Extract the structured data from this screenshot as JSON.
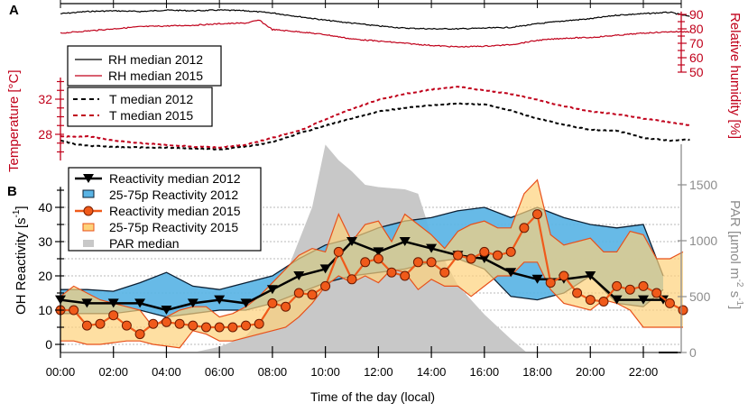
{
  "chart_data": [
    {
      "panel_label": "A",
      "type": "line",
      "x_unit": "hour",
      "xlim": [
        0,
        24
      ],
      "left_axis": {
        "label": "Temperature [°C]",
        "ticks": [
          28,
          32
        ],
        "range": [
          25.1,
          34.5
        ],
        "color": "#c0001a"
      },
      "right_axis": {
        "label": "Relative humidity [%]",
        "ticks": [
          50,
          60,
          70,
          80,
          90
        ],
        "range": [
          50,
          90
        ],
        "color": "#c0001a"
      },
      "legend_rh": [
        {
          "label": "RH median 2012",
          "color": "#000000",
          "dash": "solid"
        },
        {
          "label": "RH median 2015",
          "color": "#c0001a",
          "dash": "solid"
        }
      ],
      "legend_t": [
        {
          "label": "T median 2012",
          "color": "#000000",
          "dash": "dashed"
        },
        {
          "label": "T median 2015",
          "color": "#c0001a",
          "dash": "dashed"
        }
      ],
      "series": [
        {
          "name": "RH median 2012",
          "axis": "right",
          "color": "#000000",
          "dash": false,
          "x": [
            0,
            1,
            2,
            3,
            4,
            5,
            6,
            7,
            8,
            9,
            10,
            11,
            12,
            13,
            14,
            15,
            16,
            17,
            18,
            19,
            20,
            21,
            22,
            23,
            23.75
          ],
          "values": [
            90.5,
            92,
            92.5,
            92,
            93,
            92.5,
            93,
            92.5,
            91,
            88.5,
            86,
            84,
            82,
            80.5,
            80,
            80,
            80.5,
            81,
            83.5,
            85.5,
            87,
            89.5,
            90.5,
            91.5,
            88.5
          ]
        },
        {
          "name": "RH median 2015",
          "axis": "right",
          "color": "#c0001a",
          "dash": false,
          "x": [
            0,
            1,
            2,
            3,
            4,
            5,
            6,
            7,
            7.5,
            8,
            9,
            10,
            11,
            12,
            13,
            14,
            15,
            16,
            17,
            18,
            19,
            20,
            21,
            22,
            23,
            23.75
          ],
          "values": [
            77,
            78.5,
            80,
            81.5,
            82,
            82.5,
            83.5,
            84,
            86,
            79.5,
            78,
            76,
            73,
            71.5,
            70,
            68.5,
            67.5,
            68,
            69,
            72,
            73.5,
            74,
            75.5,
            77,
            78,
            78
          ]
        },
        {
          "name": "T median 2012",
          "axis": "left",
          "color": "#000000",
          "dash": true,
          "x": [
            0,
            0.5,
            1,
            2,
            3,
            4,
            5,
            6,
            7,
            8,
            9,
            10,
            11,
            12,
            13,
            14,
            15,
            16,
            17,
            18,
            19,
            20,
            21,
            22,
            23,
            23.75
          ],
          "values": [
            27.3,
            26.9,
            26.7,
            26.6,
            26.5,
            26.5,
            26.4,
            26.3,
            26.6,
            27.1,
            28.1,
            29.0,
            29.8,
            30.6,
            31.0,
            31.3,
            31.5,
            31.4,
            30.7,
            29.8,
            29.1,
            28.5,
            28.4,
            27.6,
            27.3,
            27.4
          ]
        },
        {
          "name": "T median 2015",
          "axis": "left",
          "color": "#c0001a",
          "dash": true,
          "x": [
            0,
            0.5,
            1,
            2,
            3,
            4,
            5,
            6,
            7,
            8,
            9,
            10,
            11,
            12,
            13,
            14,
            15,
            16,
            17,
            18,
            19,
            20,
            21,
            22,
            23,
            23.75
          ],
          "values": [
            27.8,
            27.7,
            27.8,
            27.3,
            27.0,
            26.8,
            26.6,
            26.5,
            26.8,
            27.6,
            28.4,
            29.7,
            30.9,
            31.9,
            32.6,
            33.1,
            33.4,
            33.0,
            32.6,
            31.9,
            31.2,
            30.6,
            30.3,
            29.8,
            29.4,
            29.0
          ]
        }
      ]
    },
    {
      "panel_label": "B",
      "type": "line",
      "xlabel": "Time of the day (local)",
      "x_ticks": [
        "00:00",
        "02:00",
        "04:00",
        "06:00",
        "08:00",
        "10:00",
        "12:00",
        "14:00",
        "16:00",
        "18:00",
        "20:00",
        "22:00"
      ],
      "xlim": [
        0,
        24
      ],
      "left_axis": {
        "label": "OH Reactivity [s⁻¹]",
        "label_main": "OH Reactivity [s",
        "label_sup": "-1",
        "label_end": "]",
        "ticks": [
          0,
          10,
          20,
          30,
          40
        ],
        "range": [
          -2,
          48
        ]
      },
      "right_axis": {
        "label": "PAR [µmol m⁻² s⁻¹]",
        "label_main": "PAR [µmol m",
        "label_sup1": "-2",
        "label_mid": " s",
        "label_sup2": "-1",
        "label_end": "]",
        "ticks": [
          0,
          500,
          1000,
          1500
        ],
        "range": [
          0,
          1510
        ],
        "color": "#8c8c8c"
      },
      "grid": "horizontal-dotted",
      "legend_position": "top-left",
      "legend": [
        {
          "label": "Reactivity median 2012",
          "kind": "line-triangle",
          "color": "#000000"
        },
        {
          "label": "25-75p Reactivity 2012",
          "kind": "band",
          "color": "#5ab4e5"
        },
        {
          "label": "Reactivity median 2015",
          "kind": "line-circle",
          "color": "#f05a1a"
        },
        {
          "label": "25-75p Reactivity 2015",
          "kind": "band",
          "color": "#fdd27a"
        },
        {
          "label": "PAR median",
          "kind": "area",
          "color": "#c8c8c8"
        }
      ],
      "series": [
        {
          "name": "PAR median",
          "axis": "right",
          "type": "area",
          "color": "#c8c8c8",
          "x": [
            5,
            6,
            7,
            8,
            8.5,
            9,
            9.5,
            10,
            10.5,
            11,
            11.5,
            12,
            12.5,
            13,
            13.5,
            14,
            15,
            16,
            17,
            17.6
          ],
          "values": [
            0,
            50,
            150,
            400,
            700,
            1000,
            1300,
            1860,
            1720,
            1620,
            1500,
            1480,
            1470,
            1460,
            1420,
            1050,
            600,
            340,
            120,
            0
          ]
        },
        {
          "name": "25-75p Reactivity 2012",
          "type": "band",
          "color": "#5ab4e5",
          "edge": "#0b1f33",
          "x": [
            0,
            1,
            2,
            3,
            4,
            5,
            6,
            7,
            8,
            9,
            10,
            11,
            12,
            13,
            14,
            15,
            16,
            17,
            18,
            19,
            20,
            21,
            22,
            22.75
          ],
          "upper": [
            16,
            16,
            15.5,
            18,
            21,
            17,
            16,
            18,
            20,
            25,
            29,
            31,
            34,
            36,
            37,
            39,
            40,
            37,
            40,
            37,
            35,
            34,
            35,
            20
          ],
          "lower": [
            9,
            9,
            9,
            10,
            8,
            9,
            10,
            10,
            12,
            15,
            18,
            20,
            21,
            22,
            24,
            25,
            22,
            14,
            13,
            15,
            20,
            12,
            11,
            16
          ]
        },
        {
          "name": "25-75p Reactivity 2015",
          "type": "band",
          "color": "#fdd27a",
          "edge": "#e8501a",
          "x": [
            0,
            0.5,
            1,
            1.5,
            2,
            2.5,
            3,
            3.5,
            4,
            4.5,
            5,
            5.5,
            6,
            6.5,
            7,
            7.5,
            8,
            8.5,
            9,
            9.5,
            10,
            10.5,
            11,
            11.5,
            12,
            12.5,
            13,
            13.5,
            14,
            14.5,
            15,
            15.5,
            16,
            16.5,
            17,
            17.5,
            18,
            18.5,
            19,
            19.5,
            20,
            20.5,
            21,
            21.5,
            22,
            22.5,
            23,
            23.5
          ],
          "upper": [
            14,
            17,
            15,
            13,
            12,
            11,
            10,
            5,
            8,
            10,
            11,
            11,
            8,
            9,
            11,
            14,
            18,
            22,
            26,
            28,
            27,
            38,
            30,
            35,
            36,
            30,
            38,
            35,
            32,
            28,
            33,
            35,
            36,
            34,
            34,
            44,
            48,
            32,
            29,
            30,
            31,
            27,
            27,
            33,
            32,
            25,
            25,
            27
          ],
          "lower": [
            1,
            1,
            0,
            0,
            0.5,
            1,
            1,
            0,
            -0.5,
            -1,
            4,
            3,
            1,
            1,
            2,
            3,
            4,
            5,
            8,
            12,
            17,
            20,
            18,
            20,
            18,
            22,
            21,
            16,
            19,
            17,
            17,
            14,
            17,
            20,
            20,
            24,
            24,
            16,
            12,
            11,
            10,
            13,
            12,
            10,
            5,
            5,
            5,
            5
          ]
        },
        {
          "name": "Reactivity median 2012",
          "type": "line-triangle",
          "color": "#000000",
          "x": [
            0,
            1,
            2,
            3,
            4,
            5,
            6,
            7,
            8,
            9,
            10,
            11,
            12,
            13,
            14,
            15,
            16,
            17,
            18,
            19,
            20,
            21,
            22,
            22.75
          ],
          "values": [
            13,
            12,
            12,
            12,
            10,
            12,
            13,
            12,
            16,
            20,
            22,
            30,
            27,
            30,
            28,
            26,
            25,
            21,
            19,
            19,
            20,
            13,
            13,
            13
          ]
        },
        {
          "name": "Reactivity median 2015",
          "type": "line-circle",
          "color": "#f05a1a",
          "x": [
            0,
            0.5,
            1,
            1.5,
            2,
            2.5,
            3,
            3.5,
            4,
            4.5,
            5,
            5.5,
            6,
            6.5,
            7,
            7.5,
            8,
            8.5,
            9,
            9.5,
            10,
            10.5,
            11,
            11.5,
            12,
            12.5,
            13,
            13.5,
            14,
            14.5,
            15,
            15.5,
            16,
            16.5,
            17,
            17.5,
            18,
            18.5,
            19,
            19.5,
            20,
            20.5,
            21,
            21.5,
            22,
            22.5,
            23,
            23.5
          ],
          "values": [
            10,
            10,
            5.5,
            6,
            8.5,
            5.5,
            3,
            6,
            6.5,
            6,
            5.5,
            5,
            5,
            5,
            5.5,
            6,
            12,
            11,
            15,
            14.5,
            17,
            27,
            19,
            24,
            25,
            21,
            20,
            24,
            24,
            21,
            26,
            25,
            27,
            26,
            27,
            34,
            38,
            18,
            20,
            15,
            13,
            12.5,
            17,
            16,
            17,
            15,
            12,
            10
          ]
        }
      ]
    }
  ]
}
